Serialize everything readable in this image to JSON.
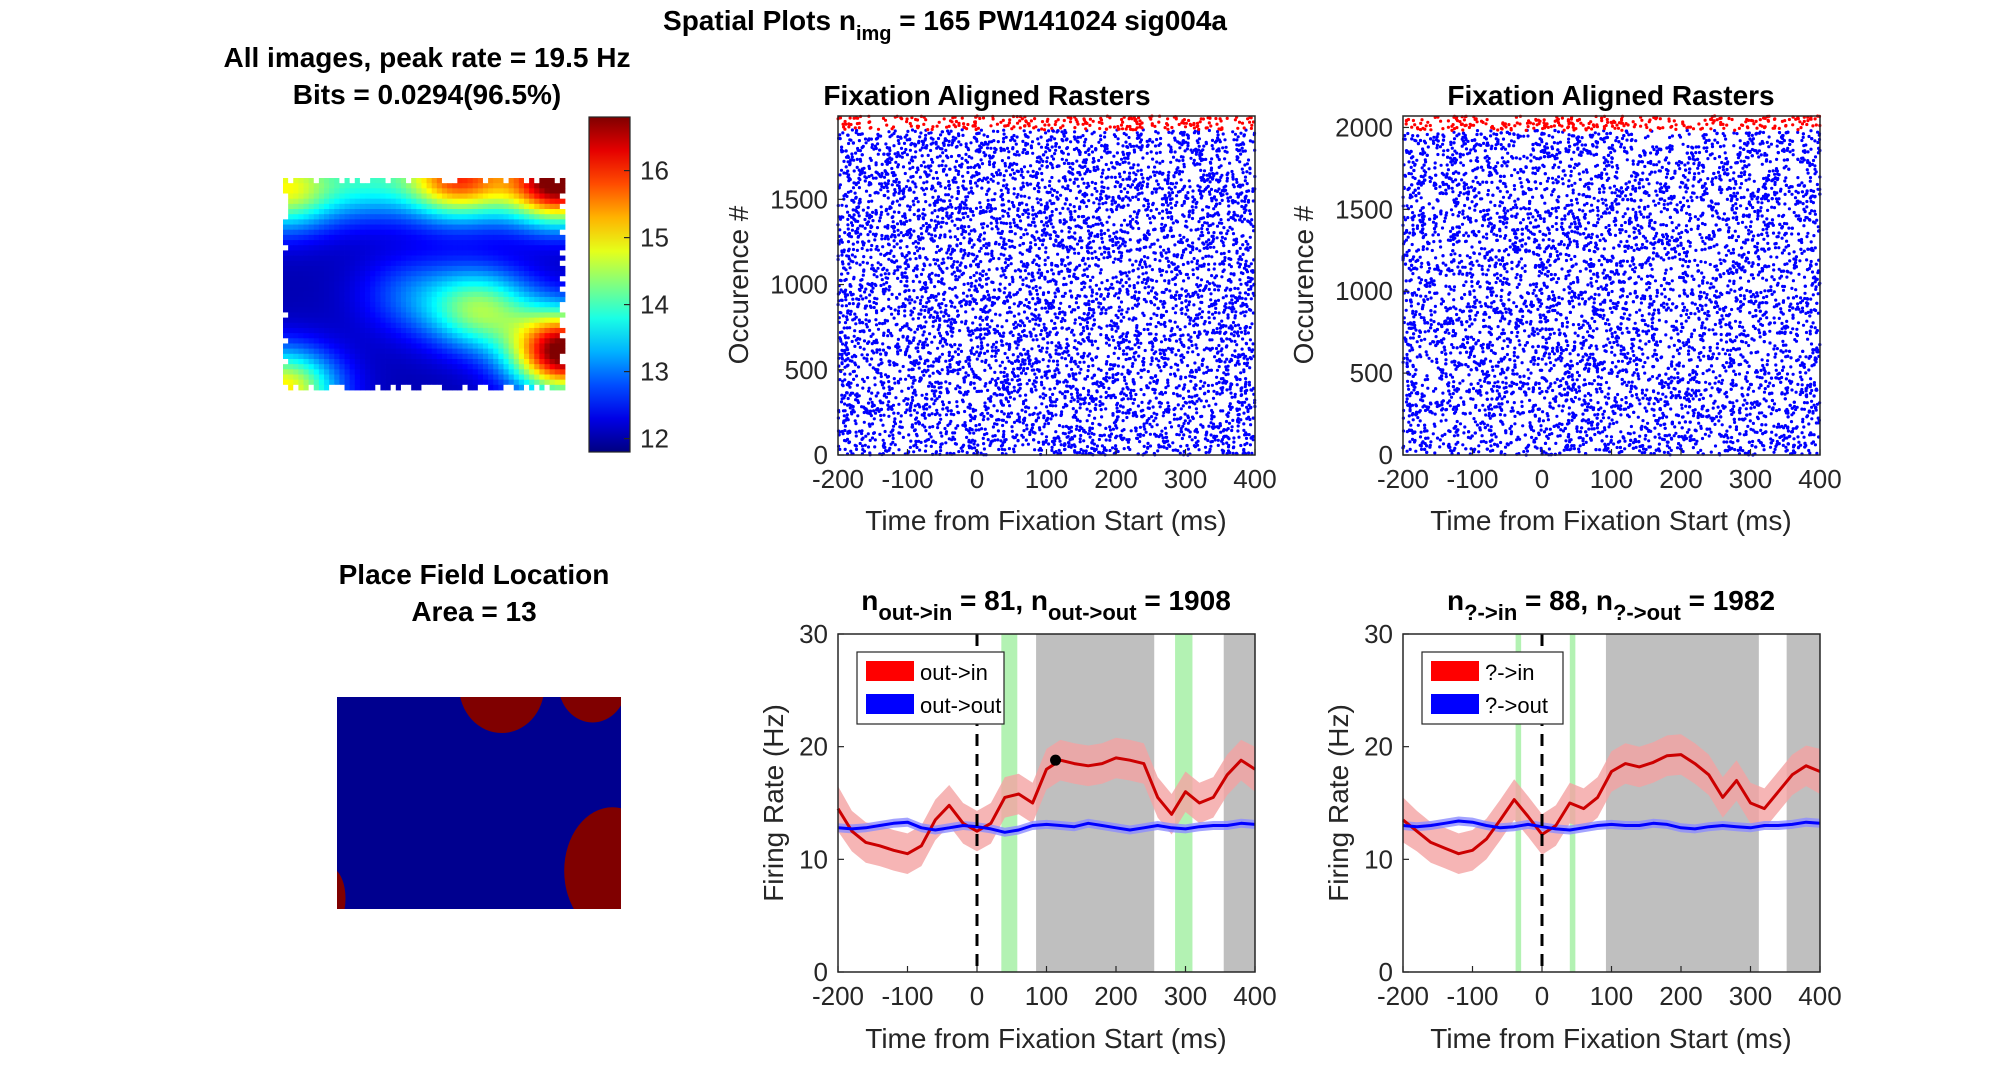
{
  "figure": {
    "supertitle": {
      "prefix": "Spatial Plots n",
      "sub": "img",
      "suffix": " = 165  PW141024 sig004a"
    }
  },
  "chart_data": [
    {
      "id": "heatmap",
      "type": "heatmap",
      "title_line1": "All images, peak rate = 19.5 Hz",
      "title_line2": "Bits = 0.0294(96.5%)",
      "colorbar": {
        "colormap": "jet",
        "ticks": [
          12,
          13,
          14,
          15,
          16
        ],
        "range": [
          11.8,
          16.8
        ]
      },
      "grid_cols": 55,
      "grid_rows": 41,
      "hotspots": [
        {
          "x": 0.0,
          "y": 0.05,
          "v": 0.55
        },
        {
          "x": 0.62,
          "y": 0.0,
          "v": 0.75
        },
        {
          "x": 0.98,
          "y": 0.02,
          "v": 1.0
        },
        {
          "x": 1.0,
          "y": 0.82,
          "v": 1.0
        },
        {
          "x": 0.7,
          "y": 0.62,
          "v": 0.45
        },
        {
          "x": 0.0,
          "y": 1.0,
          "v": 0.6
        },
        {
          "x": 0.3,
          "y": 0.0,
          "v": 0.3
        },
        {
          "x": 0.45,
          "y": 0.55,
          "v": 0.15
        }
      ]
    },
    {
      "id": "placefield",
      "type": "heatmap",
      "title_line1": "Place Field Location",
      "title_line2": "Area = 13",
      "colors": {
        "outside": "#00008f",
        "inside": "#800000"
      },
      "regions": [
        {
          "cx": 0.58,
          "cy": -0.05,
          "rx": 0.15,
          "ry": 0.22
        },
        {
          "cx": 0.9,
          "cy": -0.06,
          "rx": 0.12,
          "ry": 0.18
        },
        {
          "cx": 0.97,
          "cy": 0.82,
          "rx": 0.17,
          "ry": 0.3
        },
        {
          "cx": -0.03,
          "cy": 0.95,
          "rx": 0.06,
          "ry": 0.15
        }
      ]
    },
    {
      "id": "raster1",
      "type": "scatter",
      "title": "Fixation Aligned Rasters",
      "xlabel": "Time from Fixation Start (ms)",
      "ylabel": "Occurence #",
      "xlim": [
        -200,
        400
      ],
      "ylim": [
        0,
        1989
      ],
      "xticks": [
        -200,
        -100,
        0,
        100,
        200,
        300,
        400
      ],
      "yticks": [
        0,
        500,
        1000,
        1500
      ],
      "groups": [
        {
          "name": "out->out",
          "color": "#0000ff",
          "from": 0,
          "to": 1908
        },
        {
          "name": "out->in",
          "color": "#ff0000",
          "from": 1908,
          "to": 1989
        }
      ]
    },
    {
      "id": "raster2",
      "type": "scatter",
      "title": "Fixation Aligned Rasters",
      "xlabel": "Time from Fixation Start (ms)",
      "ylabel": "Occurence #",
      "xlim": [
        -200,
        400
      ],
      "ylim": [
        0,
        2070
      ],
      "xticks": [
        -200,
        -100,
        0,
        100,
        200,
        300,
        400
      ],
      "yticks": [
        0,
        500,
        1000,
        1500,
        2000
      ],
      "groups": [
        {
          "name": "?->out",
          "color": "#0000ff",
          "from": 0,
          "to": 1982
        },
        {
          "name": "?->in",
          "color": "#ff0000",
          "from": 1982,
          "to": 2070
        }
      ]
    },
    {
      "id": "rate1",
      "type": "line",
      "title_parts": {
        "n1": "n",
        "s1": "out->in",
        "m": " = 81, n",
        "s2": "out->out",
        "e": " = 1908"
      },
      "xlabel": "Time from Fixation Start (ms)",
      "ylabel": "Firing Rate (Hz)",
      "xlim": [
        -200,
        400
      ],
      "ylim": [
        0,
        30
      ],
      "xticks": [
        -200,
        -100,
        0,
        100,
        200,
        300,
        400
      ],
      "yticks": [
        0,
        10,
        20,
        30
      ],
      "shade_gray": [
        [
          85,
          255
        ],
        [
          355,
          400
        ]
      ],
      "shade_green": [
        [
          35,
          58
        ],
        [
          285,
          310
        ]
      ],
      "marker": {
        "x": 113,
        "y": 18.8
      },
      "x": [
        -200,
        -180,
        -160,
        -140,
        -120,
        -100,
        -80,
        -60,
        -40,
        -20,
        0,
        20,
        40,
        60,
        80,
        100,
        120,
        140,
        160,
        180,
        200,
        220,
        240,
        260,
        280,
        300,
        320,
        340,
        360,
        380,
        400
      ],
      "series": [
        {
          "name": "out->in",
          "color": "#cc0000",
          "band": "#f4a3a3",
          "values": [
            14.5,
            12.5,
            11.5,
            11.2,
            10.8,
            10.5,
            11.2,
            13.5,
            14.8,
            13.2,
            12.5,
            13.2,
            15.5,
            15.8,
            15.0,
            18.0,
            18.8,
            18.5,
            18.3,
            18.5,
            19.0,
            18.8,
            18.5,
            15.5,
            14.0,
            16.0,
            15.0,
            15.5,
            17.5,
            18.8,
            18.0
          ],
          "err": [
            2.0,
            1.8,
            1.8,
            1.8,
            1.8,
            1.8,
            1.8,
            1.8,
            1.8,
            1.8,
            1.8,
            1.8,
            1.8,
            1.8,
            1.8,
            1.8,
            1.8,
            1.8,
            1.8,
            1.8,
            1.8,
            1.8,
            1.8,
            1.8,
            1.8,
            1.8,
            1.8,
            1.8,
            1.8,
            1.8,
            2.0
          ]
        },
        {
          "name": "out->out",
          "color": "#0000ff",
          "band": "#8c8cff",
          "values": [
            12.8,
            12.7,
            12.8,
            13.0,
            13.2,
            13.3,
            12.8,
            12.6,
            12.8,
            13.0,
            12.9,
            12.7,
            12.4,
            12.6,
            13.0,
            13.1,
            13.0,
            12.9,
            13.2,
            13.0,
            12.8,
            12.6,
            12.8,
            13.0,
            12.8,
            12.7,
            12.9,
            13.0,
            13.0,
            13.2,
            13.1
          ],
          "err": [
            0.4,
            0.4,
            0.4,
            0.4,
            0.4,
            0.4,
            0.4,
            0.4,
            0.4,
            0.4,
            0.4,
            0.4,
            0.4,
            0.4,
            0.4,
            0.4,
            0.4,
            0.4,
            0.4,
            0.4,
            0.4,
            0.4,
            0.4,
            0.4,
            0.4,
            0.4,
            0.4,
            0.4,
            0.4,
            0.4,
            0.4
          ]
        }
      ],
      "legend": "top-left"
    },
    {
      "id": "rate2",
      "type": "line",
      "title_parts": {
        "n1": "n",
        "s1": "?->in",
        "m": " = 88, n",
        "s2": "?->out",
        "e": " = 1982"
      },
      "xlabel": "Time from Fixation Start (ms)",
      "ylabel": "Firing Rate (Hz)",
      "xlim": [
        -200,
        400
      ],
      "ylim": [
        0,
        30
      ],
      "xticks": [
        -200,
        -100,
        0,
        100,
        200,
        300,
        400
      ],
      "yticks": [
        0,
        10,
        20,
        30
      ],
      "shade_gray": [
        [
          92,
          312
        ],
        [
          352,
          400
        ]
      ],
      "shade_green": [
        [
          -38,
          -30
        ],
        [
          40,
          48
        ]
      ],
      "marker": null,
      "x": [
        -200,
        -180,
        -160,
        -140,
        -120,
        -100,
        -80,
        -60,
        -40,
        -20,
        0,
        20,
        40,
        60,
        80,
        100,
        120,
        140,
        160,
        180,
        200,
        220,
        240,
        260,
        280,
        300,
        320,
        340,
        360,
        380,
        400
      ],
      "series": [
        {
          "name": "?->in",
          "color": "#cc0000",
          "band": "#f4a3a3",
          "values": [
            13.5,
            12.5,
            11.5,
            11.0,
            10.5,
            10.8,
            11.8,
            13.5,
            15.3,
            13.8,
            12.2,
            13.0,
            15.0,
            14.5,
            15.5,
            17.8,
            18.5,
            18.2,
            18.6,
            19.2,
            19.3,
            18.5,
            17.5,
            15.5,
            17.0,
            15.0,
            14.5,
            16.0,
            17.5,
            18.3,
            17.8
          ],
          "err": [
            2.0,
            1.8,
            1.8,
            1.8,
            1.8,
            1.8,
            1.8,
            1.8,
            1.8,
            1.8,
            1.8,
            1.8,
            1.8,
            1.8,
            1.8,
            1.8,
            1.8,
            1.8,
            1.8,
            1.8,
            1.8,
            1.8,
            1.8,
            1.8,
            1.8,
            1.8,
            1.8,
            1.8,
            1.8,
            1.8,
            2.0
          ]
        },
        {
          "name": "?->out",
          "color": "#0000ff",
          "band": "#8c8cff",
          "values": [
            13.0,
            12.9,
            13.0,
            13.2,
            13.4,
            13.3,
            13.0,
            12.8,
            12.9,
            13.1,
            12.9,
            12.7,
            12.6,
            12.8,
            13.0,
            13.1,
            13.0,
            13.0,
            13.2,
            13.1,
            12.8,
            12.7,
            12.9,
            13.0,
            12.9,
            12.8,
            13.0,
            13.0,
            13.1,
            13.3,
            13.2
          ],
          "err": [
            0.4,
            0.4,
            0.4,
            0.4,
            0.4,
            0.4,
            0.4,
            0.4,
            0.4,
            0.4,
            0.4,
            0.4,
            0.4,
            0.4,
            0.4,
            0.4,
            0.4,
            0.4,
            0.4,
            0.4,
            0.4,
            0.4,
            0.4,
            0.4,
            0.4,
            0.4,
            0.4,
            0.4,
            0.4,
            0.4,
            0.4
          ]
        }
      ],
      "legend": "top-left"
    }
  ]
}
